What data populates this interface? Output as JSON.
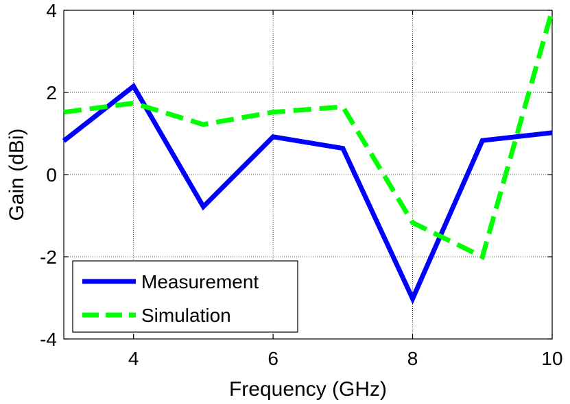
{
  "chart_data": {
    "type": "line",
    "xlabel": "Frequency (GHz)",
    "ylabel": "Gain (dBi)",
    "xlim": [
      3,
      10
    ],
    "ylim": [
      -4,
      4
    ],
    "x_ticks": [
      4,
      6,
      8,
      10
    ],
    "y_ticks": [
      -4,
      -2,
      0,
      2,
      4
    ],
    "grid": true,
    "legend_position": "bottom-left",
    "x": [
      3,
      4,
      5,
      6,
      7,
      8,
      9,
      10
    ],
    "series": [
      {
        "name": "Measurement",
        "values": [
          0.82,
          2.15,
          -0.78,
          0.92,
          0.64,
          -3.02,
          0.83,
          1.02
        ],
        "color": "#0000FF",
        "style": "solid"
      },
      {
        "name": "Simulation",
        "values": [
          1.52,
          1.74,
          1.22,
          1.52,
          1.65,
          -1.17,
          -2.0,
          4.0
        ],
        "color": "#00FF00",
        "style": "dashed"
      }
    ]
  }
}
